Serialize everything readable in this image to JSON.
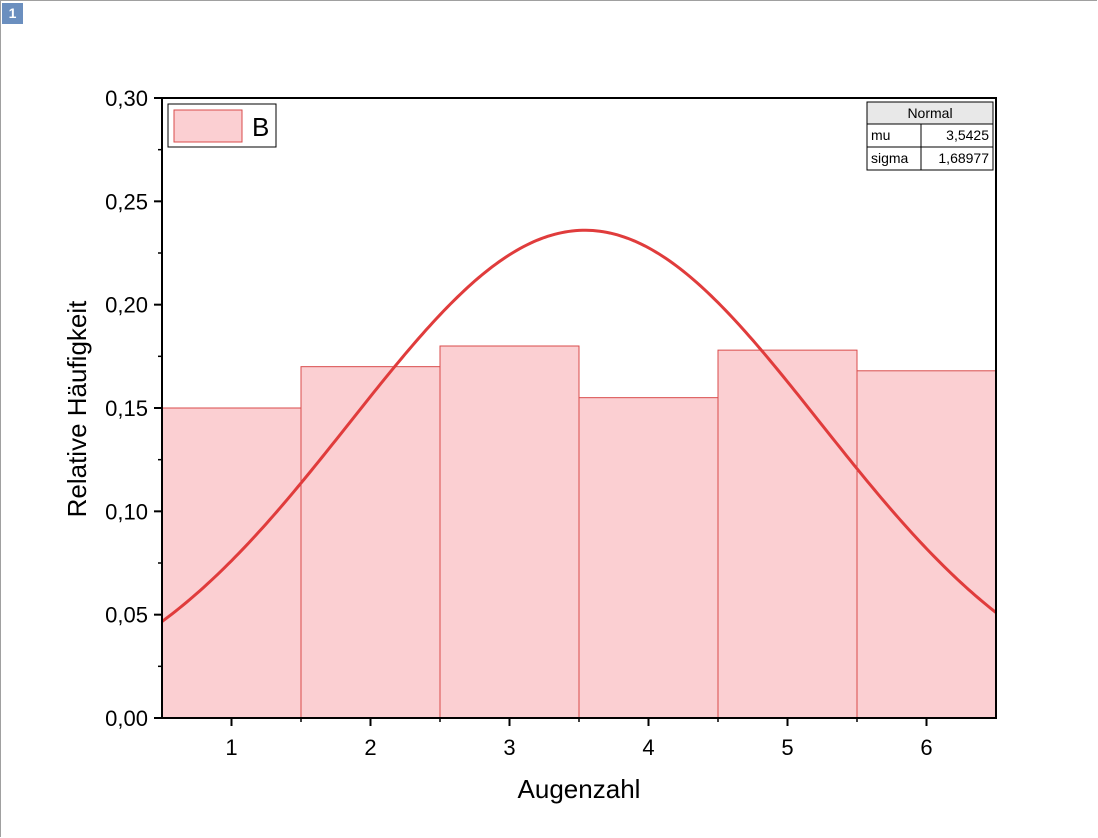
{
  "page": {
    "number": "1"
  },
  "colors": {
    "bar_fill": "#fbcfd2",
    "bar_stroke": "#d94b4b",
    "curve": "#e03c3c",
    "axis": "#000000",
    "badge": "#6b8fbf",
    "stats_header_bg": "#e8e8e8"
  },
  "chart_data": {
    "type": "bar",
    "xlabel": "Augenzahl",
    "ylabel": "Relative Häufigkeit",
    "categories": [
      "1",
      "2",
      "3",
      "4",
      "5",
      "6"
    ],
    "x": [
      1,
      2,
      3,
      4,
      5,
      6
    ],
    "xlim": [
      0.5,
      6.5
    ],
    "ylim": [
      0,
      0.3
    ],
    "yticks": [
      "0,00",
      "0,05",
      "0,10",
      "0,15",
      "0,20",
      "0,25",
      "0,30"
    ],
    "series": [
      {
        "name": "B",
        "values": [
          0.15,
          0.17,
          0.18,
          0.155,
          0.178,
          0.168
        ]
      }
    ],
    "fit": {
      "type": "normal",
      "mu": 3.5425,
      "sigma": 1.68977,
      "peak": 0.236
    },
    "legend": {
      "position": "top-left",
      "label": "B"
    },
    "stats_table": {
      "title": "Normal",
      "rows": [
        {
          "label": "mu",
          "value": "3,5425"
        },
        {
          "label": "sigma",
          "value": "1,68977"
        }
      ]
    },
    "grid": false
  }
}
